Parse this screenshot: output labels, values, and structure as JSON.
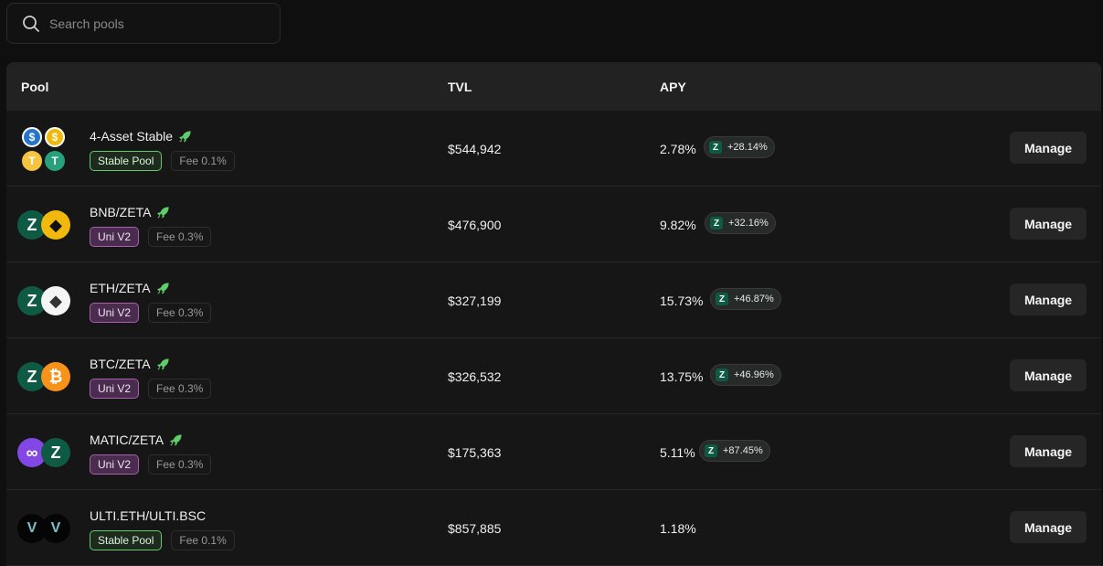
{
  "search": {
    "placeholder": "Search pools"
  },
  "header": {
    "pool": "Pool",
    "tvl": "TVL",
    "apy": "APY"
  },
  "manage_label": "Manage",
  "colors": {
    "zeta": "#0f5a45",
    "stable_border": "#5fce6a",
    "univ2_bg": "#4a2c4e",
    "rocket": "#5fce6a"
  },
  "pools": [
    {
      "name": "4-Asset Stable",
      "type": "Stable Pool",
      "fee": "Fee 0.1%",
      "tvl": "$544,942",
      "apy": "2.78%",
      "boost": "+28.14%",
      "icons": [
        "usdc-icon",
        "busd-icon",
        "tusd-icon",
        "usdt-icon"
      ]
    },
    {
      "name": "BNB/ZETA",
      "type": "Uni V2",
      "fee": "Fee 0.3%",
      "tvl": "$476,900",
      "apy": "9.82%",
      "boost": "+32.16%",
      "icons": [
        "zeta-icon",
        "bnb-icon"
      ]
    },
    {
      "name": "ETH/ZETA",
      "type": "Uni V2",
      "fee": "Fee 0.3%",
      "tvl": "$327,199",
      "apy": "15.73%",
      "boost": "+46.87%",
      "icons": [
        "zeta-icon",
        "eth-icon"
      ]
    },
    {
      "name": "BTC/ZETA",
      "type": "Uni V2",
      "fee": "Fee 0.3%",
      "tvl": "$326,532",
      "apy": "13.75%",
      "boost": "+46.96%",
      "icons": [
        "zeta-icon",
        "btc-icon"
      ]
    },
    {
      "name": "MATIC/ZETA",
      "type": "Uni V2",
      "fee": "Fee 0.3%",
      "tvl": "$175,363",
      "apy": "5.11%",
      "boost": "+87.45%",
      "icons": [
        "matic-icon",
        "zeta-icon"
      ]
    },
    {
      "name": "ULTI.ETH/ULTI.BSC",
      "type": "Stable Pool",
      "fee": "Fee 0.1%",
      "tvl": "$857,885",
      "apy": "1.18%",
      "boost": "",
      "icons": [
        "ulti-icon",
        "ulti-icon"
      ]
    }
  ]
}
